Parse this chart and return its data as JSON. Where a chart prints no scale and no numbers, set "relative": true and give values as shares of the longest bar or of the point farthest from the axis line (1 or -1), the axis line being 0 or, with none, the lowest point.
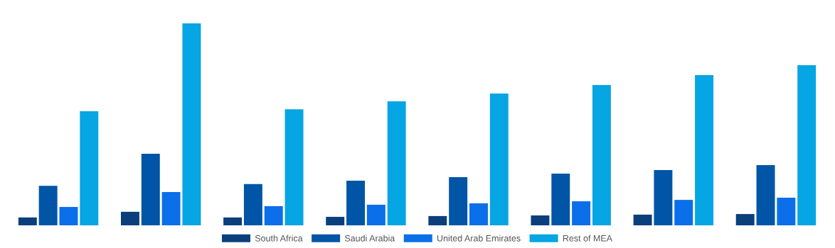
{
  "chart_data": {
    "type": "bar",
    "relative": true,
    "categories": [
      null,
      null,
      null,
      null,
      null,
      null,
      null,
      null
    ],
    "series": [
      {
        "name": "South Africa",
        "color": "#0b3f7c",
        "values": [
          0.039,
          0.067,
          0.039,
          0.042,
          0.046,
          0.049,
          0.053,
          0.056
        ]
      },
      {
        "name": "Saudi Arabia",
        "color": "#0055a6",
        "values": [
          0.196,
          0.354,
          0.204,
          0.221,
          0.239,
          0.256,
          0.274,
          0.298
        ]
      },
      {
        "name": "United Arab Emirates",
        "color": "#0a6fe8",
        "values": [
          0.091,
          0.165,
          0.095,
          0.102,
          0.109,
          0.119,
          0.126,
          0.137
        ]
      },
      {
        "name": "Rest of MEA",
        "color": "#06a5e4",
        "values": [
          0.565,
          1,
          0.575,
          0.614,
          0.653,
          0.695,
          0.744,
          0.793
        ]
      }
    ],
    "legend": "bottom",
    "grid": false
  }
}
